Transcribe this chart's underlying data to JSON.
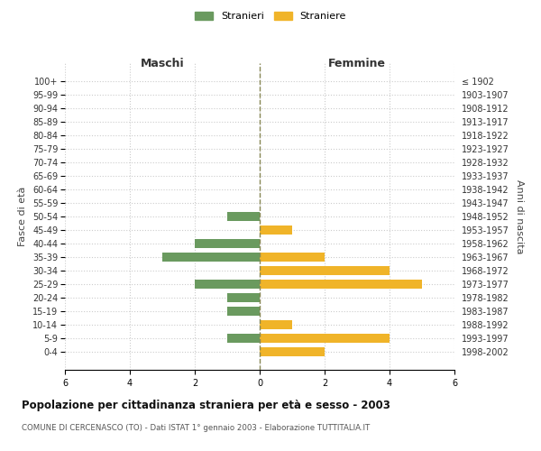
{
  "age_groups": [
    "100+",
    "95-99",
    "90-94",
    "85-89",
    "80-84",
    "75-79",
    "70-74",
    "65-69",
    "60-64",
    "55-59",
    "50-54",
    "45-49",
    "40-44",
    "35-39",
    "30-34",
    "25-29",
    "20-24",
    "15-19",
    "10-14",
    "5-9",
    "0-4"
  ],
  "birth_years": [
    "≤ 1902",
    "1903-1907",
    "1908-1912",
    "1913-1917",
    "1918-1922",
    "1923-1927",
    "1928-1932",
    "1933-1937",
    "1938-1942",
    "1943-1947",
    "1948-1952",
    "1953-1957",
    "1958-1962",
    "1963-1967",
    "1968-1972",
    "1973-1977",
    "1978-1982",
    "1983-1987",
    "1988-1992",
    "1993-1997",
    "1998-2002"
  ],
  "maschi": [
    0,
    0,
    0,
    0,
    0,
    0,
    0,
    0,
    0,
    0,
    1,
    0,
    2,
    3,
    0,
    2,
    1,
    1,
    0,
    1,
    0
  ],
  "femmine": [
    0,
    0,
    0,
    0,
    0,
    0,
    0,
    0,
    0,
    0,
    0,
    1,
    0,
    2,
    4,
    5,
    0,
    0,
    1,
    4,
    2
  ],
  "male_color": "#6a9a5f",
  "female_color": "#f0b429",
  "xlabel_left": "Maschi",
  "xlabel_right": "Femmine",
  "ylabel_left": "Fasce di età",
  "ylabel_right": "Anni di nascita",
  "legend_male": "Stranieri",
  "legend_female": "Straniere",
  "title": "Popolazione per cittadinanza straniera per età e sesso - 2003",
  "subtitle": "COMUNE DI CERCENASCO (TO) - Dati ISTAT 1° gennaio 2003 - Elaborazione TUTTITALIA.IT",
  "xlim": 6,
  "background_color": "#ffffff",
  "grid_color": "#cccccc",
  "center_line_color": "#888855"
}
